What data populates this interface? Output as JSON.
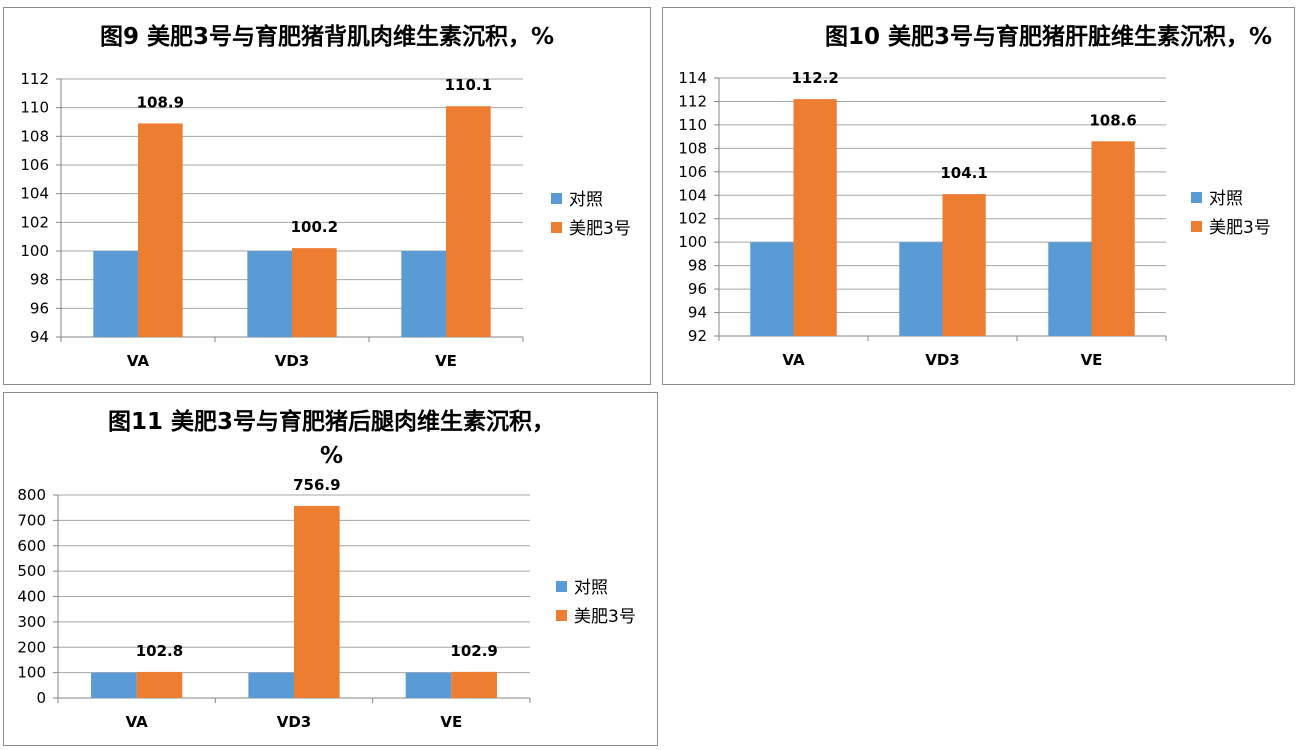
{
  "colors": {
    "control": "#5b9bd5",
    "treatment": "#ed7d31",
    "grid": "#a6a6a6"
  },
  "chart_data": [
    {
      "type": "bar",
      "title": "图9 美肥3号与育肥猪背肌肉维生素沉积，%",
      "categories": [
        "VA",
        "VD3",
        "VE"
      ],
      "series": [
        {
          "name": "对照",
          "values": [
            100,
            100,
            100
          ]
        },
        {
          "name": "美肥3号",
          "values": [
            108.9,
            100.2,
            110.1
          ]
        }
      ],
      "data_labels": [
        "108.9",
        "100.2",
        "110.1"
      ],
      "ylim": [
        94,
        112
      ],
      "yticks": [
        "94",
        "96",
        "98",
        "100",
        "102",
        "104",
        "106",
        "108",
        "110",
        "112"
      ],
      "grid": true,
      "legend": "right"
    },
    {
      "type": "bar",
      "title": "图10 美肥3号与育肥猪肝脏维生素沉积，%",
      "categories": [
        "VA",
        "VD3",
        "VE"
      ],
      "series": [
        {
          "name": "对照",
          "values": [
            100,
            100,
            100
          ]
        },
        {
          "name": "美肥3号",
          "values": [
            112.2,
            104.1,
            108.6
          ]
        }
      ],
      "data_labels": [
        "112.2",
        "104.1",
        "108.6"
      ],
      "ylim": [
        92,
        114
      ],
      "yticks": [
        "92",
        "94",
        "96",
        "98",
        "100",
        "102",
        "104",
        "106",
        "108",
        "110",
        "112",
        "114"
      ],
      "grid": true,
      "legend": "right"
    },
    {
      "type": "bar",
      "title_lines": [
        "图11 美肥3号与育肥猪后腿肉维生素沉积，",
        "%"
      ],
      "categories": [
        "VA",
        "VD3",
        "VE"
      ],
      "series": [
        {
          "name": "对照",
          "values": [
            100,
            100,
            100
          ]
        },
        {
          "name": "美肥3号",
          "values": [
            102.8,
            756.9,
            102.9
          ]
        }
      ],
      "data_labels": [
        "102.8",
        "756.9",
        "102.9"
      ],
      "ylim": [
        0,
        800
      ],
      "yticks": [
        "0",
        "100",
        "200",
        "300",
        "400",
        "500",
        "600",
        "700",
        "800"
      ],
      "grid": true,
      "legend": "right"
    }
  ]
}
